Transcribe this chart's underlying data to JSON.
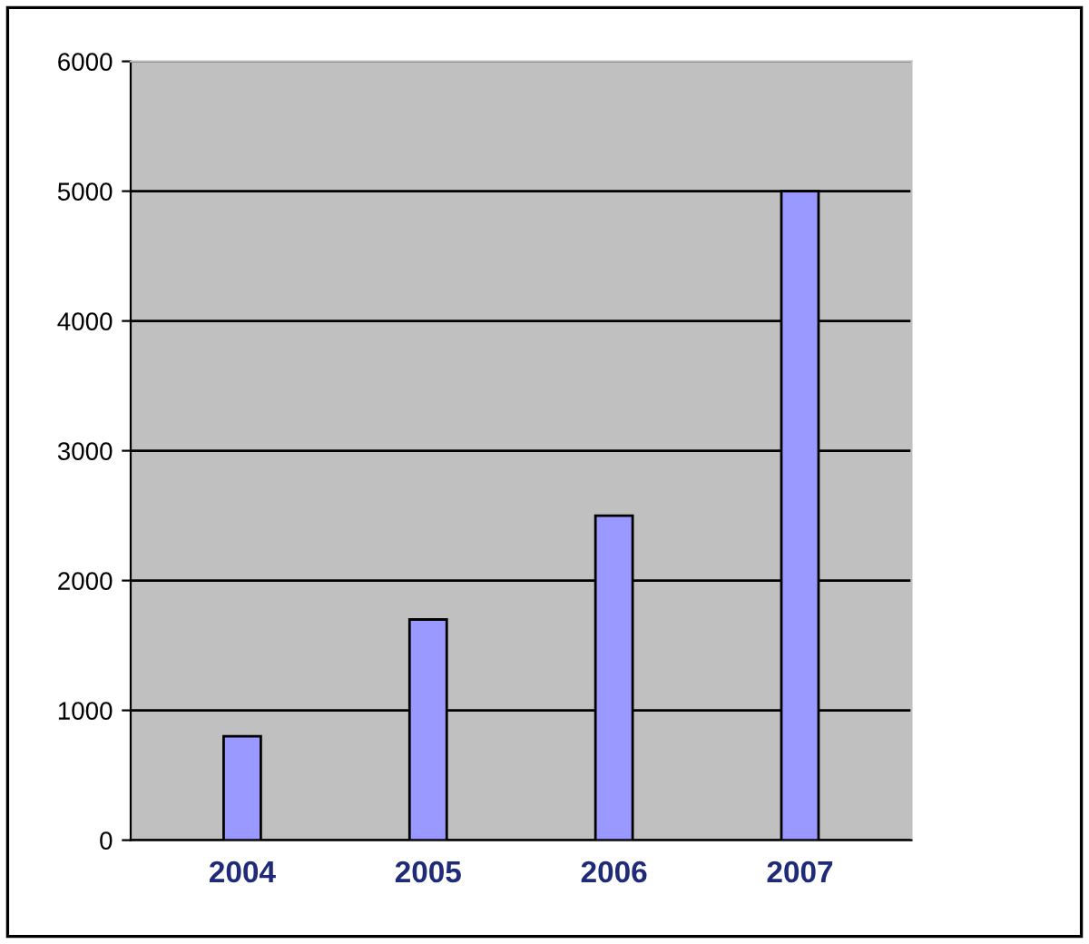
{
  "chart_data": {
    "type": "bar",
    "categories": [
      "2004",
      "2005",
      "2006",
      "2007"
    ],
    "values": [
      800,
      1700,
      2500,
      5000
    ],
    "color": "#9999ff",
    "ylim": [
      0,
      6000
    ],
    "yticks": [
      0,
      1000,
      2000,
      3000,
      4000,
      5000,
      6000
    ],
    "grid": "y"
  }
}
